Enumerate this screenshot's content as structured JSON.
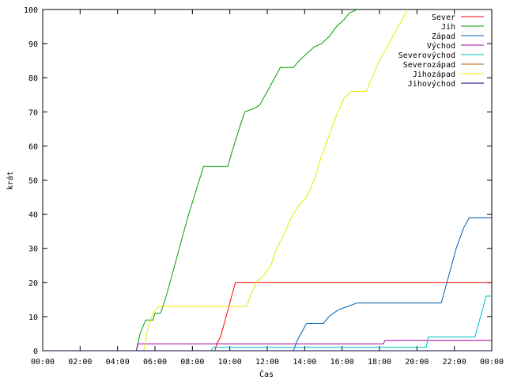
{
  "chart_data": {
    "type": "line",
    "title": "",
    "xlabel": "Čas",
    "ylabel": "krát",
    "x_unit": "hours",
    "xlim": [
      0,
      24
    ],
    "ylim": [
      0,
      100
    ],
    "x_ticks": [
      {
        "value": 0,
        "label": "00:00"
      },
      {
        "value": 2,
        "label": "02:00"
      },
      {
        "value": 4,
        "label": "04:00"
      },
      {
        "value": 6,
        "label": "06:00"
      },
      {
        "value": 8,
        "label": "08:00"
      },
      {
        "value": 10,
        "label": "10:00"
      },
      {
        "value": 12,
        "label": "12:00"
      },
      {
        "value": 14,
        "label": "14:00"
      },
      {
        "value": 16,
        "label": "16:00"
      },
      {
        "value": 18,
        "label": "18:00"
      },
      {
        "value": 20,
        "label": "20:00"
      },
      {
        "value": 22,
        "label": "22:00"
      },
      {
        "value": 24,
        "label": "00:00"
      }
    ],
    "y_ticks": [
      0,
      10,
      20,
      30,
      40,
      50,
      60,
      70,
      80,
      90,
      100
    ],
    "grid": false,
    "legend_position": "top-right",
    "series": [
      {
        "name": "Sever",
        "color": "#ff0000",
        "points": [
          [
            0,
            0
          ],
          [
            9.2,
            0
          ],
          [
            9.3,
            2
          ],
          [
            9.5,
            4
          ],
          [
            9.7,
            8
          ],
          [
            9.9,
            12
          ],
          [
            10.1,
            16
          ],
          [
            10.3,
            20
          ],
          [
            24,
            20
          ]
        ]
      },
      {
        "name": "Jih",
        "color": "#00a000",
        "points": [
          [
            0,
            0
          ],
          [
            5.0,
            0
          ],
          [
            5.2,
            5
          ],
          [
            5.5,
            9
          ],
          [
            5.9,
            9
          ],
          [
            6.0,
            11
          ],
          [
            6.3,
            11
          ],
          [
            6.6,
            16
          ],
          [
            7.0,
            24
          ],
          [
            7.4,
            32
          ],
          [
            7.8,
            40
          ],
          [
            8.2,
            47
          ],
          [
            8.6,
            54
          ],
          [
            9.9,
            54
          ],
          [
            10.1,
            58
          ],
          [
            10.5,
            65
          ],
          [
            10.8,
            70
          ],
          [
            11.3,
            71
          ],
          [
            11.6,
            72
          ],
          [
            11.9,
            75
          ],
          [
            12.1,
            77
          ],
          [
            12.4,
            80
          ],
          [
            12.7,
            83
          ],
          [
            13.4,
            83
          ],
          [
            13.7,
            85
          ],
          [
            14.1,
            87
          ],
          [
            14.5,
            89
          ],
          [
            14.9,
            90
          ],
          [
            15.3,
            92
          ],
          [
            15.7,
            95
          ],
          [
            16.1,
            97
          ],
          [
            16.4,
            99
          ],
          [
            16.8,
            100
          ]
        ]
      },
      {
        "name": "Západ",
        "color": "#0060b0",
        "points": [
          [
            0,
            0
          ],
          [
            13.4,
            0
          ],
          [
            13.6,
            3
          ],
          [
            13.9,
            6
          ],
          [
            14.1,
            8
          ],
          [
            15.0,
            8
          ],
          [
            15.3,
            10
          ],
          [
            15.8,
            12
          ],
          [
            16.3,
            13
          ],
          [
            16.8,
            14
          ],
          [
            21.3,
            14
          ],
          [
            21.7,
            22
          ],
          [
            22.1,
            30
          ],
          [
            22.5,
            36
          ],
          [
            22.8,
            39
          ],
          [
            24,
            39
          ]
        ]
      },
      {
        "name": "Východ",
        "color": "#a000a0",
        "points": [
          [
            0,
            0
          ],
          [
            5.0,
            0
          ],
          [
            5.1,
            2
          ],
          [
            18.2,
            2
          ],
          [
            18.3,
            3
          ],
          [
            24,
            3
          ]
        ]
      },
      {
        "name": "Severovýchod",
        "color": "#00c0c0",
        "points": [
          [
            0,
            0
          ],
          [
            9.0,
            0
          ],
          [
            9.1,
            1
          ],
          [
            20.5,
            1
          ],
          [
            20.6,
            4
          ],
          [
            23.1,
            4
          ],
          [
            23.3,
            8
          ],
          [
            23.5,
            12
          ],
          [
            23.7,
            16
          ],
          [
            24,
            16
          ]
        ]
      },
      {
        "name": "Severozápad",
        "color": "#c06000",
        "points": [
          [
            0,
            0
          ],
          [
            24,
            0
          ]
        ]
      },
      {
        "name": "Jihozápad",
        "color": "#e8e800",
        "points": [
          [
            0,
            0
          ],
          [
            5.4,
            0
          ],
          [
            5.6,
            6
          ],
          [
            5.9,
            11
          ],
          [
            6.2,
            13
          ],
          [
            10.9,
            13
          ],
          [
            11.1,
            16
          ],
          [
            11.4,
            20
          ],
          [
            11.8,
            22
          ],
          [
            12.2,
            25
          ],
          [
            12.5,
            30
          ],
          [
            12.8,
            33
          ],
          [
            13.2,
            38
          ],
          [
            13.6,
            42
          ],
          [
            14.1,
            45
          ],
          [
            14.5,
            50
          ],
          [
            14.9,
            57
          ],
          [
            15.3,
            63
          ],
          [
            15.7,
            69
          ],
          [
            16.1,
            74
          ],
          [
            16.5,
            76
          ],
          [
            17.3,
            76
          ],
          [
            17.6,
            80
          ],
          [
            18.0,
            85
          ],
          [
            18.5,
            90
          ],
          [
            19.0,
            95
          ],
          [
            19.5,
            100
          ]
        ]
      },
      {
        "name": "Jihovýchod",
        "color": "#000080",
        "points": [
          [
            0,
            0
          ],
          [
            24,
            0
          ]
        ]
      }
    ]
  }
}
